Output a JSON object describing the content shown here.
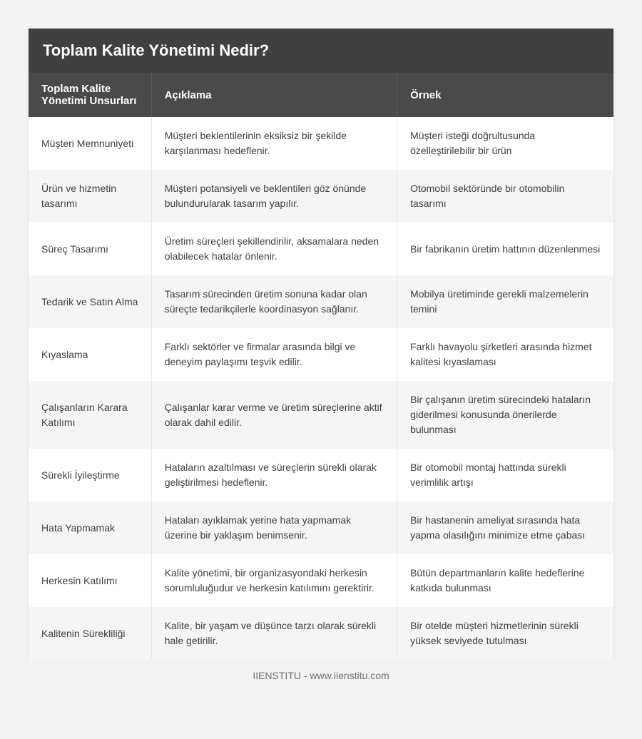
{
  "type": "table",
  "title": "Toplam Kalite Yönetimi Nedir?",
  "colors": {
    "page_background": "#f2f2f2",
    "title_background": "#404040",
    "title_text": "#ffffff",
    "header_background": "#4a4a4a",
    "header_text": "#ffffff",
    "header_border": "#5a5a5a",
    "row_odd": "#ffffff",
    "row_even": "#f5f5f5",
    "cell_border": "#e8e8e8",
    "body_text": "#404040",
    "footer_text": "#707070"
  },
  "typography": {
    "title_fontsize": 22,
    "title_fontweight": 700,
    "header_fontsize": 15,
    "header_fontweight": 700,
    "cell_fontsize": 14,
    "footer_fontsize": 14,
    "font_family": "Segoe UI, sans-serif"
  },
  "layout": {
    "column_widths": [
      "21%",
      "42%",
      "37%"
    ],
    "cell_padding": "16px 18px",
    "title_padding": "18px 20px"
  },
  "columns": [
    "Toplam Kalite Yönetimi Unsurları",
    "Açıklama",
    "Örnek"
  ],
  "rows": [
    {
      "c0": "Müşteri Memnuniyeti",
      "c1": "Müşteri beklentilerinin eksiksiz bir şekilde karşılanması hedeflenir.",
      "c2": "Müşteri isteği doğrultusunda özelleştirilebilir bir ürün"
    },
    {
      "c0": "Ürün ve hizmetin tasarımı",
      "c1": "Müşteri potansiyeli ve beklentileri göz önünde bulundurularak tasarım yapılır.",
      "c2": "Otomobil sektöründe bir otomobilin tasarımı"
    },
    {
      "c0": "Süreç Tasarımı",
      "c1": "Üretim süreçleri şekillendirilir, aksamalara neden olabilecek hatalar önlenir.",
      "c2": "Bir fabrikanın üretim hattının düzenlenmesi"
    },
    {
      "c0": "Tedarik ve Satın Alma",
      "c1": "Tasarım sürecinden üretim sonuna kadar olan süreçte tedarikçilerle koordinasyon sağlanır.",
      "c2": "Mobilya üretiminde gerekli malzemelerin temini"
    },
    {
      "c0": "Kıyaslama",
      "c1": "Farklı sektörler ve firmalar arasında bilgi ve deneyim paylaşımı teşvik edilir.",
      "c2": "Farklı havayolu şirketleri arasında hizmet kalitesi kıyaslaması"
    },
    {
      "c0": "Çalışanların Karara Katılımı",
      "c1": "Çalışanlar karar verme ve üretim süreçlerine aktif olarak dahil edilir.",
      "c2": "Bir çalışanın üretim sürecindeki hataların giderilmesi konusunda önerilerde bulunması"
    },
    {
      "c0": "Sürekli İyileştirme",
      "c1": "Hataların azaltılması ve süreçlerin sürekli olarak geliştirilmesi hedeflenir.",
      "c2": "Bir otomobil montaj hattında sürekli verimlilik artışı"
    },
    {
      "c0": "Hata Yapmamak",
      "c1": "Hataları ayıklamak yerine hata yapmamak üzerine bir yaklaşım benimsenir.",
      "c2": "Bir hastanenin ameliyat sırasında hata yapma olasılığını minimize etme çabası"
    },
    {
      "c0": "Herkesin Katılımı",
      "c1": "Kalite yönetimi, bir organizasyondaki herkesin sorumluluğudur ve herkesin katılımını gerektirir.",
      "c2": "Bütün departmanların kalite hedeflerine katkıda bulunması"
    },
    {
      "c0": "Kalitenin Sürekliliği",
      "c1": "Kalite, bir yaşam ve düşünce tarzı olarak sürekli hale getirilir.",
      "c2": "Bir otelde müşteri hizmetlerinin sürekli yüksek seviyede tutulması"
    }
  ],
  "footer": "IIENSTITU - www.iienstitu.com"
}
